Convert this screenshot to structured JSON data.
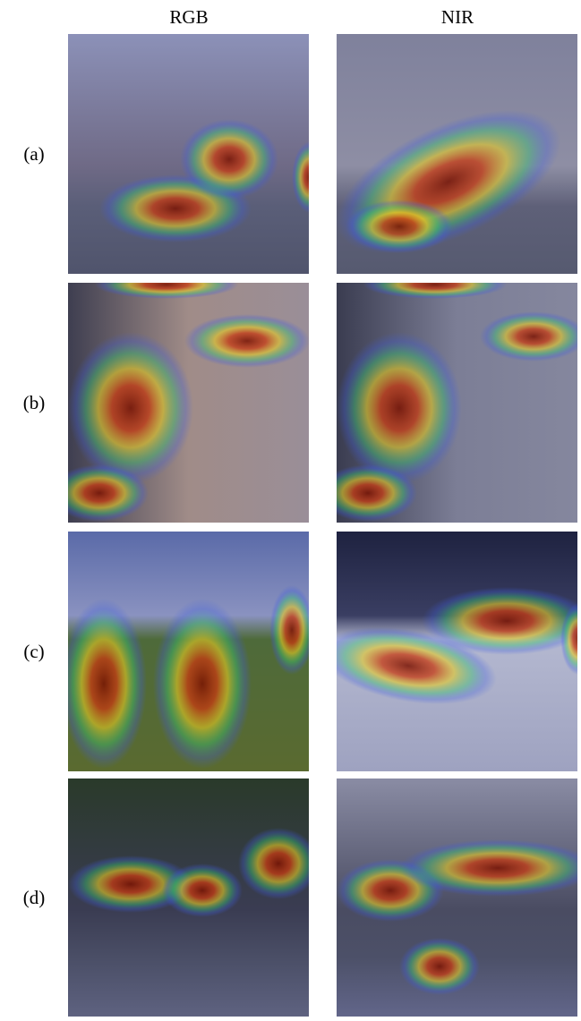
{
  "header": {
    "columns": [
      "RGB",
      "NIR"
    ]
  },
  "rows": [
    {
      "label": "(a)"
    },
    {
      "label": "(b)"
    },
    {
      "label": "(c)"
    },
    {
      "label": "(d)"
    }
  ]
}
